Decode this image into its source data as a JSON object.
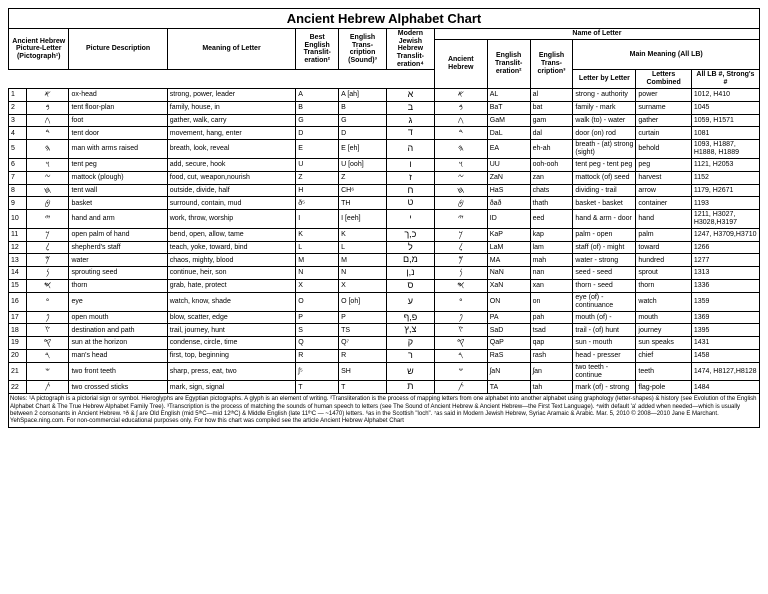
{
  "title": "Ancient Hebrew Alphabet Chart",
  "headers": {
    "ancient_picture": "Ancient Hebrew Picture-Letter (Pictograph¹)",
    "picture_desc": "Picture Description",
    "meaning": "Meaning of Letter",
    "best_english": "Best English Translit-eration²",
    "english_sound": "English Trans-cription (Sound)³",
    "modern_hebrew": "Modern Jewish Hebrew Translit-eration⁴",
    "name_of_letter": "Name of Letter",
    "anc_heb": "Ancient Hebrew",
    "eng_heb": "English Translit-eration²",
    "eng_tr": "English Trans-cription³",
    "main_meaning": "Main Meaning (All LB)",
    "mm_letterby": "Letter by Letter",
    "mm_combined": "Letters Combined",
    "mm_strongs": "All LB #, Strong's #"
  },
  "rows": [
    {
      "n": "1",
      "picto": "𐤀",
      "desc": "ox-head",
      "mean": "strong, power, leader",
      "be": "A",
      "es": "A [ah]",
      "mh": "א",
      "ah": "𐤀",
      "eh": "AL",
      "et": "al",
      "m1": "strong - authority",
      "m2": "power",
      "m3": "1012, H410"
    },
    {
      "n": "2",
      "picto": "𐤁",
      "desc": "tent floor-plan",
      "mean": "family, house, in",
      "be": "B",
      "es": "B",
      "mh": "ב",
      "ah": "𐤁",
      "eh": "BaT",
      "et": "bat",
      "m1": "family - mark",
      "m2": "surname",
      "m3": "1045"
    },
    {
      "n": "3",
      "picto": "𐤂",
      "desc": "foot",
      "mean": "gather, walk, carry",
      "be": "G",
      "es": "G",
      "mh": "ג",
      "ah": "𐤂",
      "eh": "GaM",
      "et": "gam",
      "m1": "walk (to) - water",
      "m2": "gather",
      "m3": "1059, H1571"
    },
    {
      "n": "4",
      "picto": "𐤃",
      "desc": "tent door",
      "mean": "movement, hang, enter",
      "be": "D",
      "es": "D",
      "mh": "ד",
      "ah": "𐤃",
      "eh": "DaL",
      "et": "dal",
      "m1": "door (on) rod",
      "m2": "curtain",
      "m3": "1081"
    },
    {
      "n": "5",
      "picto": "𐤄",
      "desc": "man with arms raised",
      "mean": "breath, look, reveal",
      "be": "E",
      "es": "E [eh]",
      "mh": "ה",
      "ah": "𐤄",
      "eh": "EA",
      "et": "eh-ah",
      "m1": "breath - (at) strong (sight)",
      "m2": "behold",
      "m3": "1093, H1887, H1888, H1889"
    },
    {
      "n": "6",
      "picto": "𐤅",
      "desc": "tent peg",
      "mean": "add, secure, hook",
      "be": "U",
      "es": "U [ooh]",
      "mh": "ו",
      "ah": "𐤅",
      "eh": "UU",
      "et": "ooh-ooh",
      "m1": "tent peg - tent peg",
      "m2": "peg",
      "m3": "1121, H2053"
    },
    {
      "n": "7",
      "picto": "𐤆",
      "desc": "mattock (plough)",
      "mean": "food, cut, weapon,nourish",
      "be": "Z",
      "es": "Z",
      "mh": "ז",
      "ah": "𐤆",
      "eh": "ZaN",
      "et": "zan",
      "m1": "mattock (of) seed",
      "m2": "harvest",
      "m3": "1152"
    },
    {
      "n": "8",
      "picto": "𐤇",
      "desc": "tent wall",
      "mean": "outside, divide, half",
      "be": "H",
      "es": "CH⁶",
      "mh": "ח",
      "ah": "𐤇",
      "eh": "HaS",
      "et": "chats",
      "m1": "dividing - trail",
      "m2": "arrow",
      "m3": "1179, H2671"
    },
    {
      "n": "9",
      "picto": "𐤈",
      "desc": "basket",
      "mean": "surround, contain, mud",
      "be": "ð⁵",
      "es": "TH",
      "mh": "ט",
      "ah": "𐤈",
      "eh": "ðað",
      "et": "thath",
      "m1": "basket - basket",
      "m2": "container",
      "m3": "1193"
    },
    {
      "n": "10",
      "picto": "𐤉",
      "desc": "hand and arm",
      "mean": "work, throw, worship",
      "be": "I",
      "es": "I [eeh]",
      "mh": "י",
      "ah": "𐤉",
      "eh": "ID",
      "et": "eed",
      "m1": "hand & arm - door",
      "m2": "hand",
      "m3": "1211, H3027, H3028,H3197"
    },
    {
      "n": "11",
      "picto": "𐤊",
      "desc": "open palm of hand",
      "mean": "bend, open, allow, tame",
      "be": "K",
      "es": "K",
      "mh": "כ,ך",
      "ah": "𐤊",
      "eh": "KaP",
      "et": "kap",
      "m1": "palm - open",
      "m2": "palm",
      "m3": "1247, H3709,H3710"
    },
    {
      "n": "12",
      "picto": "𐤋",
      "desc": "shepherd's staff",
      "mean": "teach, yoke, toward, bind",
      "be": "L",
      "es": "L",
      "mh": "ל",
      "ah": "𐤋",
      "eh": "LaM",
      "et": "lam",
      "m1": "staff (of) - might",
      "m2": "toward",
      "m3": "1266"
    },
    {
      "n": "13",
      "picto": "𐤌",
      "desc": "water",
      "mean": "chaos, mighty, blood",
      "be": "M",
      "es": "M",
      "mh": "מ,ם",
      "ah": "𐤌",
      "eh": "MA",
      "et": "mah",
      "m1": "water - strong",
      "m2": "hundred",
      "m3": "1277"
    },
    {
      "n": "14",
      "picto": "𐤍",
      "desc": "sprouting seed",
      "mean": "continue, heir, son",
      "be": "N",
      "es": "N",
      "mh": "נ,ן",
      "ah": "𐤍",
      "eh": "NaN",
      "et": "nan",
      "m1": "seed - seed",
      "m2": "sprout",
      "m3": "1313"
    },
    {
      "n": "15",
      "picto": "𐤎",
      "desc": "thorn",
      "mean": "grab, hate, protect",
      "be": "X",
      "es": "X",
      "mh": "ס",
      "ah": "𐤎",
      "eh": "XaN",
      "et": "xan",
      "m1": "thorn - seed",
      "m2": "thorn",
      "m3": "1336"
    },
    {
      "n": "16",
      "picto": "𐤏",
      "desc": "eye",
      "mean": "watch, know, shade",
      "be": "O",
      "es": "O [oh]",
      "mh": "ע",
      "ah": "𐤏",
      "eh": "ON",
      "et": "on",
      "m1": "eye (of) - continuance",
      "m2": "watch",
      "m3": "1359"
    },
    {
      "n": "17",
      "picto": "𐤐",
      "desc": "open mouth",
      "mean": "blow, scatter, edge",
      "be": "P",
      "es": "P",
      "mh": "פ,ף",
      "ah": "𐤐",
      "eh": "PA",
      "et": "pah",
      "m1": "mouth (of) -",
      "m2": "mouth",
      "m3": "1369"
    },
    {
      "n": "18",
      "picto": "𐤑",
      "desc": "destination and path",
      "mean": "trail, journey, hunt",
      "be": "S",
      "es": "TS",
      "mh": "צ,ץ",
      "ah": "𐤑",
      "eh": "SaD",
      "et": "tsad",
      "m1": "trail - (of) hunt",
      "m2": "journey",
      "m3": "1395"
    },
    {
      "n": "19",
      "picto": "𐤒",
      "desc": "sun at the horizon",
      "mean": "condense, circle, time",
      "be": "Q",
      "es": "Q⁷",
      "mh": "ק",
      "ah": "𐤒",
      "eh": "QaP",
      "et": "qap",
      "m1": "sun - mouth",
      "m2": "sun speaks",
      "m3": "1431"
    },
    {
      "n": "20",
      "picto": "𐤓",
      "desc": "man's head",
      "mean": "first, top, beginning",
      "be": "R",
      "es": "R",
      "mh": "ר",
      "ah": "𐤓",
      "eh": "RaS",
      "et": "rash",
      "m1": "head - presser",
      "m2": "chief",
      "m3": "1458"
    },
    {
      "n": "21",
      "picto": "𐤔",
      "desc": "two front teeth",
      "mean": "sharp, press, eat, two",
      "be": "ʃ⁵",
      "es": "SH",
      "mh": "ש",
      "ah": "𐤔",
      "eh": "ʃaN",
      "et": "ʃan",
      "m1": "two teeth - continue",
      "m2": "teeth",
      "m3": "1474, H8127,H8128"
    },
    {
      "n": "22",
      "picto": "𐤕",
      "desc": "two crossed sticks",
      "mean": "mark, sign, signal",
      "be": "T",
      "es": "T",
      "mh": "ת",
      "ah": "𐤕",
      "eh": "TA",
      "et": "tah",
      "m1": "mark (of) - strong",
      "m2": "flag-pole",
      "m3": "1484"
    }
  ],
  "footer": {
    "text": "Notes: ¹A pictograph is a pictorial sign or symbol. Hieroglyphs are Egyptian pictographs. A glyph is an element of writing. ²Transliteration is the process of mapping letters from one alphabet into another alphabet using graphology (letter-shapes) & history (see Evolution of the English Alphabet Chart & The True Hebrew Alphabet Family Tree). ³Transcription is the process of matching the sounds of human speech to letters (see The Sound of Ancient Hebrew & Ancient Hebrew—the First Text Language). ⁴with default 'a' added when needed—which is usually between 2 consonants in Ancient Hebrew. ⁵ð & ʃ are Old English (mid 5ᵗʰC—mid 12ᵗʰC) & Middle English (late 11ᵗʰC — ~1470) letters. ⁶as in the Scottish \"loch\". ⁷as said in Modern Jewish Hebrew, Syriac Aramaic & Arabic. Mar. 5, 2010 © 2008—2010 Jane E Marchant. YehSpace.ning.com. For non-commercial educational purposes only. For how this chart was compiled see the article Ancient Hebrew Alphabet Chart"
  }
}
